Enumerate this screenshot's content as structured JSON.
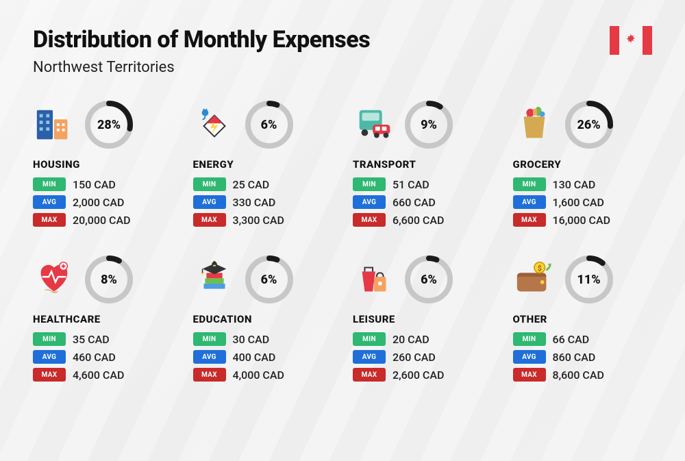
{
  "header": {
    "title": "Distribution of Monthly Expenses",
    "subtitle": "Northwest Territories"
  },
  "labels": {
    "min": "MIN",
    "avg": "AVG",
    "max": "MAX"
  },
  "donut": {
    "bg_color": "#c7c7c7",
    "fg_color": "#1a1a1a",
    "stroke_width": 8,
    "radius": 31
  },
  "tag_colors": {
    "min": "#2eb872",
    "avg": "#1e6fd9",
    "max": "#c92a2a"
  },
  "flag_color": "#e63946",
  "categories": [
    {
      "id": "housing",
      "name": "HOUSING",
      "percent": 28,
      "min": "150 CAD",
      "avg": "2,000 CAD",
      "max": "20,000 CAD"
    },
    {
      "id": "energy",
      "name": "ENERGY",
      "percent": 6,
      "min": "25 CAD",
      "avg": "330 CAD",
      "max": "3,300 CAD"
    },
    {
      "id": "transport",
      "name": "TRANSPORT",
      "percent": 9,
      "min": "51 CAD",
      "avg": "660 CAD",
      "max": "6,600 CAD"
    },
    {
      "id": "grocery",
      "name": "GROCERY",
      "percent": 26,
      "min": "130 CAD",
      "avg": "1,600 CAD",
      "max": "16,000 CAD"
    },
    {
      "id": "healthcare",
      "name": "HEALTHCARE",
      "percent": 8,
      "min": "35 CAD",
      "avg": "460 CAD",
      "max": "4,600 CAD"
    },
    {
      "id": "education",
      "name": "EDUCATION",
      "percent": 6,
      "min": "30 CAD",
      "avg": "400 CAD",
      "max": "4,000 CAD"
    },
    {
      "id": "leisure",
      "name": "LEISURE",
      "percent": 6,
      "min": "20 CAD",
      "avg": "260 CAD",
      "max": "2,600 CAD"
    },
    {
      "id": "other",
      "name": "OTHER",
      "percent": 11,
      "min": "66 CAD",
      "avg": "860 CAD",
      "max": "8,600 CAD"
    }
  ]
}
